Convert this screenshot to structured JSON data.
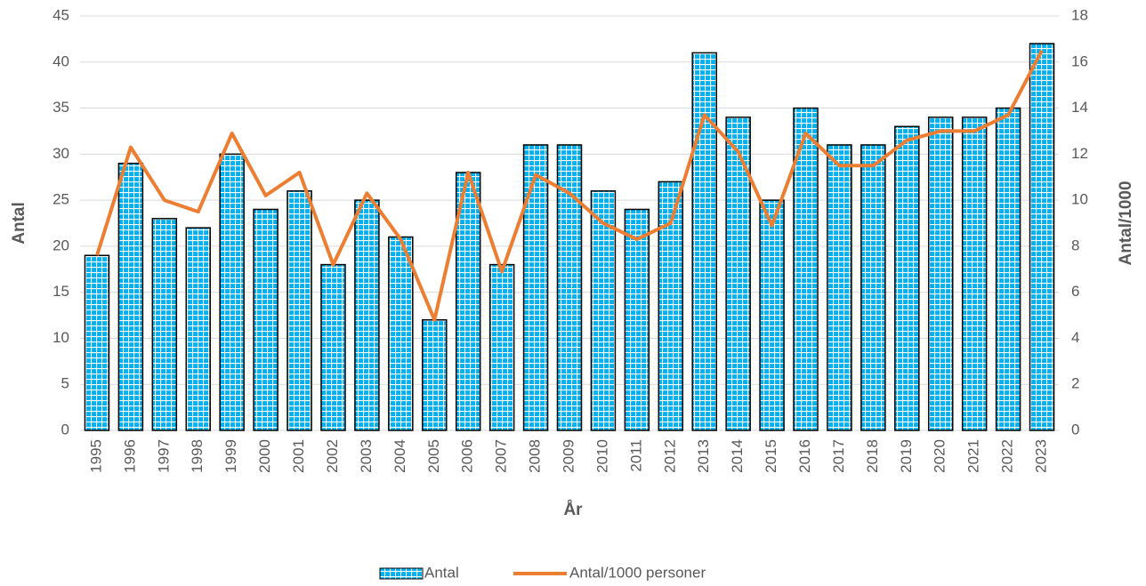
{
  "chart_data": {
    "type": "bar_line",
    "categories": [
      "1995",
      "1996",
      "1997",
      "1998",
      "1999",
      "2000",
      "2001",
      "2002",
      "2003",
      "2004",
      "2005",
      "2006",
      "2007",
      "2008",
      "2009",
      "2010",
      "2011",
      "2012",
      "2013",
      "2014",
      "2015",
      "2016",
      "2017",
      "2018",
      "2019",
      "2020",
      "2021",
      "2022",
      "2023"
    ],
    "series": [
      {
        "name": "Antal",
        "type": "bar",
        "color": "#00b0f0",
        "values": [
          19,
          29,
          23,
          22,
          30,
          24,
          26,
          18,
          25,
          21,
          12,
          28,
          18,
          31,
          31,
          26,
          24,
          27,
          41,
          34,
          25,
          35,
          31,
          31,
          33,
          34,
          34,
          35,
          42
        ]
      },
      {
        "name": "Antal/1000 personer",
        "type": "line",
        "axis": "y2",
        "color": "#ed7d31",
        "values": [
          7.6,
          12.3,
          10.0,
          9.5,
          12.9,
          10.2,
          11.2,
          7.2,
          10.3,
          8.3,
          4.8,
          11.2,
          6.9,
          11.1,
          10.3,
          9.0,
          8.3,
          9.0,
          13.7,
          12.1,
          8.9,
          12.9,
          11.5,
          11.5,
          12.6,
          13.0,
          13.0,
          13.7,
          16.5
        ]
      }
    ],
    "x_label": "År",
    "y_label": "Antal",
    "y2_label": "Antal/1000",
    "ylim": [
      0,
      45
    ],
    "yticks": [
      0,
      5,
      10,
      15,
      20,
      25,
      30,
      35,
      40,
      45
    ],
    "y2lim": [
      0,
      18
    ],
    "y2ticks": [
      0,
      2,
      4,
      6,
      8,
      10,
      12,
      14,
      16,
      18
    ],
    "grid": true,
    "legend": "bottom"
  }
}
